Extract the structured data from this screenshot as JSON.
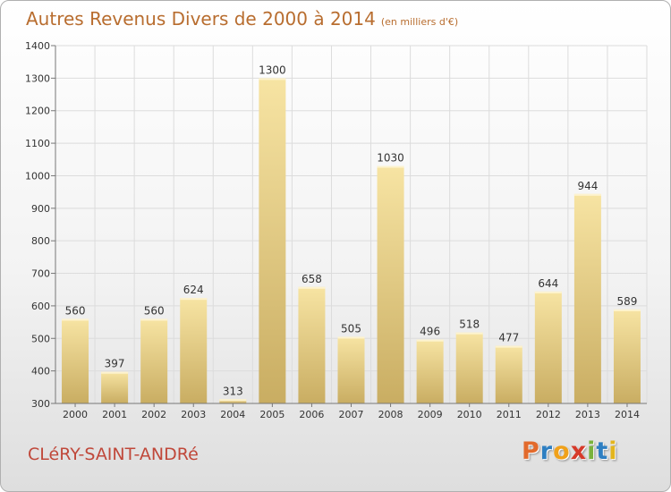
{
  "header": {
    "title": "Autres Revenus Divers de 2000 à 2014",
    "unit_note": "(en milliers d'€)"
  },
  "footer": {
    "place": "CLéRY-SAINT-ANDRé",
    "brand_letters": [
      "P",
      "r",
      "o",
      "x",
      "i",
      "t",
      "i"
    ],
    "brand_colors": [
      "#e26a2c",
      "#2e7fc2",
      "#f0a11a",
      "#d63a2a",
      "#7ab33c",
      "#2e7fc2",
      "#e3b51d"
    ]
  },
  "colors": {
    "title": "#b86d2f",
    "place": "#c0483a",
    "bar_light": "#f7e4a3",
    "bar_dark": "#c9ad62",
    "grid": "#dcdcdc",
    "axis": "#777777"
  },
  "chart_data": {
    "type": "bar",
    "categories": [
      "2000",
      "2001",
      "2002",
      "2003",
      "2004",
      "2005",
      "2006",
      "2007",
      "2008",
      "2009",
      "2010",
      "2011",
      "2012",
      "2013",
      "2014"
    ],
    "values": [
      560,
      397,
      560,
      624,
      313,
      1300,
      658,
      505,
      1030,
      496,
      518,
      477,
      644,
      944,
      589
    ],
    "ylim": [
      300,
      1400
    ],
    "yticks": [
      300,
      400,
      500,
      600,
      700,
      800,
      900,
      1000,
      1100,
      1200,
      1300,
      1400
    ],
    "grid": true,
    "data_labels": true
  }
}
